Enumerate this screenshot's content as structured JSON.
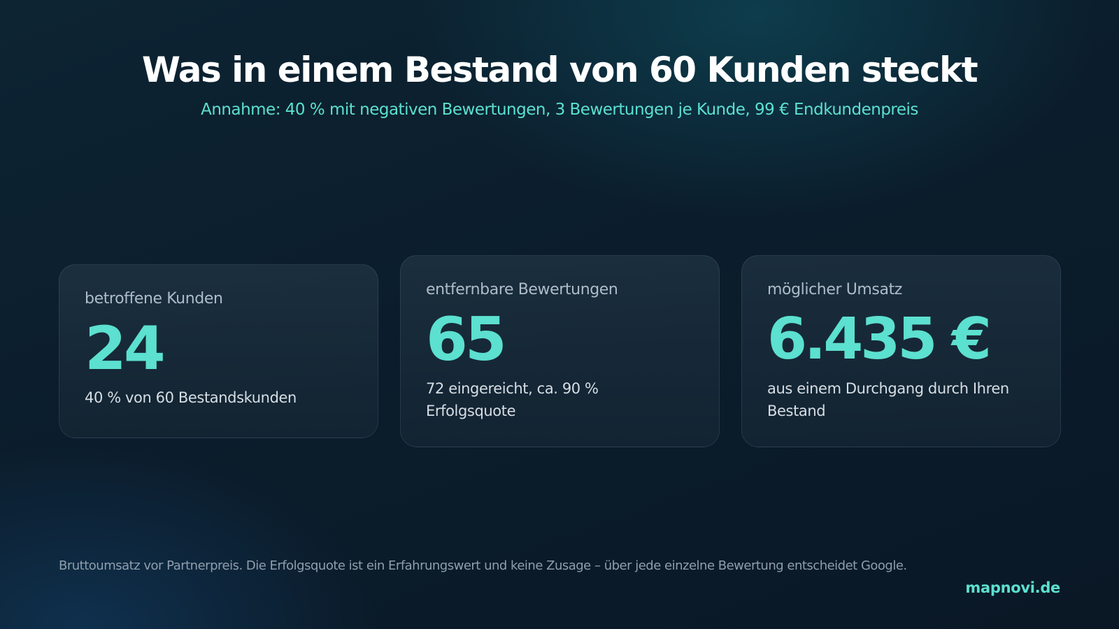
{
  "header": {
    "title": "Was in einem Bestand von 60 Kunden steckt",
    "subtitle": "Annahme: 40 % mit negativen Bewertungen, 3 Bewertungen je Kunde, 99 € Endkundenpreis"
  },
  "cards": [
    {
      "label": "betroffene Kunden",
      "value": "24",
      "description": "40 % von 60 Bestandskunden"
    },
    {
      "label": "entfernbare Bewertungen",
      "value": "65",
      "description": "72 eingereicht, ca. 90 % Erfolgsquote"
    },
    {
      "label": "möglicher Umsatz",
      "value": "6.435 €",
      "description": "aus einem Durchgang durch Ihren Bestand"
    }
  ],
  "footer": {
    "note": "Bruttoumsatz vor Partnerpreis. Die Erfolgsquote ist ein Erfahrungswert und keine Zusage – über jede einzelne Bewertung entscheidet Google.",
    "brand": "mapnovi.de"
  },
  "colors": {
    "accent": "#5ce0cf",
    "background": "#0b1d2c",
    "title": "#ffffff",
    "label": "#aebcc8",
    "muted": "#8e9ead"
  }
}
